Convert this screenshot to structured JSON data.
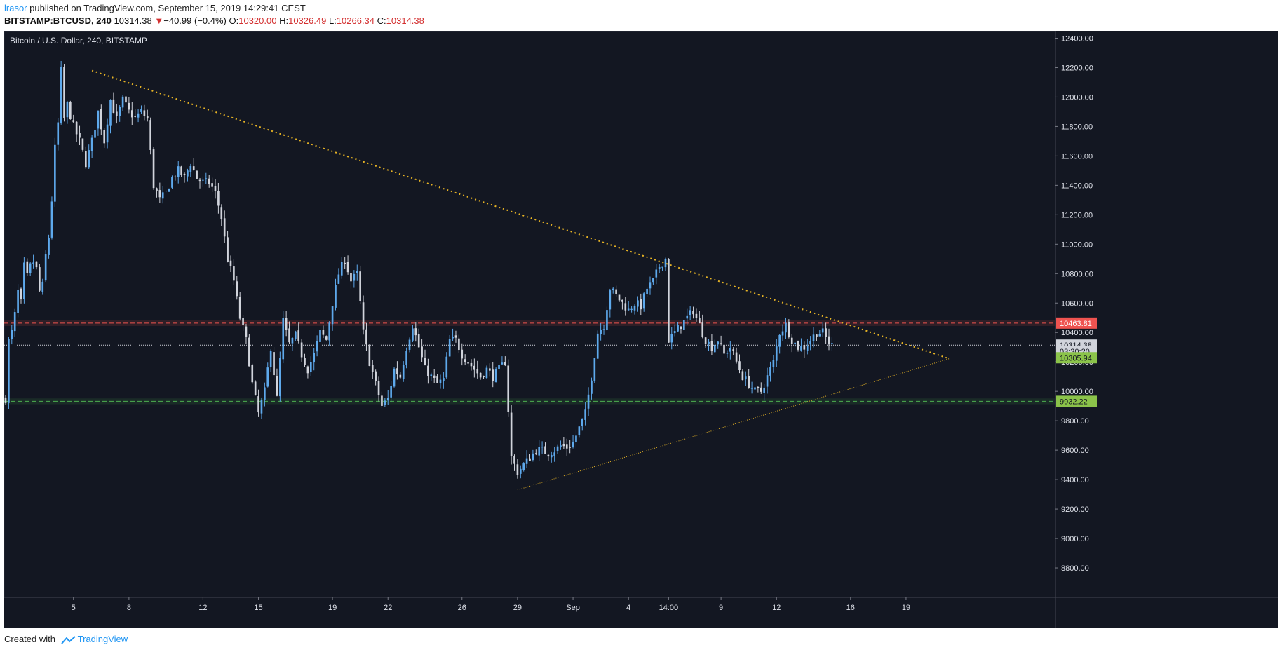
{
  "header": {
    "user": "lrasor",
    "published_text": "published on TradingView.com, September 15, 2019 14:29:41 CEST",
    "symbol": "BITSTAMP:BTCUSD, 240",
    "last": "10314.38",
    "change_arrow": "▼",
    "change": "−40.99 (−0.4%)",
    "o_label": "O:",
    "o_value": "10320.00",
    "h_label": "H:",
    "h_value": "10326.49",
    "l_label": "L:",
    "l_value": "10266.34",
    "c_label": "C:",
    "c_value": "10314.38"
  },
  "footer": {
    "created_with": "Created with",
    "brand": "TradingView"
  },
  "colors": {
    "background": "#131722",
    "up_candle": "#5ea9ec",
    "down_candle": "#d1d4dc",
    "resistance": "#ef5350",
    "support": "#4caf50",
    "trendline": "#e6b325",
    "axis_text": "#e0e3eb"
  },
  "chart_data": {
    "type": "candlestick",
    "title": "Bitcoin / U.S. Dollar, 240, BITSTAMP",
    "ylim": [
      8600,
      12450
    ],
    "grid": false,
    "y_ticks": [
      "8800.00",
      "9000.00",
      "9200.00",
      "9400.00",
      "9600.00",
      "9800.00",
      "10000.00",
      "10200.00",
      "10400.00",
      "10600.00",
      "10800.00",
      "11000.00",
      "11200.00",
      "11400.00",
      "11600.00",
      "11800.00",
      "12000.00",
      "12200.00",
      "12400.00"
    ],
    "x_ticks": [
      {
        "label": "5",
        "t": 22
      },
      {
        "label": "8",
        "t": 40
      },
      {
        "label": "12",
        "t": 64
      },
      {
        "label": "15",
        "t": 82
      },
      {
        "label": "19",
        "t": 106
      },
      {
        "label": "22",
        "t": 124
      },
      {
        "label": "26",
        "t": 148
      },
      {
        "label": "29",
        "t": 166
      },
      {
        "label": "Sep",
        "t": 184
      },
      {
        "label": "4",
        "t": 202
      },
      {
        "label": "14:00",
        "t": 215
      },
      {
        "label": "9",
        "t": 232
      },
      {
        "label": "12",
        "t": 250
      },
      {
        "label": "16",
        "t": 274
      },
      {
        "label": "19",
        "t": 292
      }
    ],
    "series": [
      {
        "name": "BTCUSD",
        "anchors": [
          [
            0,
            9950
          ],
          [
            1,
            10340
          ],
          [
            2,
            10400
          ],
          [
            3,
            10520
          ],
          [
            4,
            10680
          ],
          [
            5,
            10600
          ],
          [
            6,
            10850
          ],
          [
            7,
            10780
          ],
          [
            8,
            10850
          ],
          [
            9,
            10880
          ],
          [
            10,
            10830
          ],
          [
            11,
            10680
          ],
          [
            12,
            10720
          ],
          [
            13,
            10920
          ],
          [
            14,
            11050
          ],
          [
            15,
            11300
          ],
          [
            16,
            11650
          ],
          [
            17,
            11820
          ],
          [
            18,
            12180
          ],
          [
            19,
            11850
          ],
          [
            20,
            11950
          ],
          [
            22,
            11800
          ],
          [
            24,
            11700
          ],
          [
            26,
            11550
          ],
          [
            28,
            11700
          ],
          [
            30,
            11900
          ],
          [
            32,
            11700
          ],
          [
            34,
            11980
          ],
          [
            36,
            11850
          ],
          [
            38,
            11980
          ],
          [
            40,
            11900
          ],
          [
            42,
            11860
          ],
          [
            44,
            11900
          ],
          [
            46,
            11850
          ],
          [
            48,
            11400
          ],
          [
            50,
            11300
          ],
          [
            52,
            11350
          ],
          [
            54,
            11450
          ],
          [
            56,
            11500
          ],
          [
            58,
            11450
          ],
          [
            60,
            11550
          ],
          [
            62,
            11450
          ],
          [
            64,
            11420
          ],
          [
            66,
            11420
          ],
          [
            68,
            11350
          ],
          [
            70,
            11180
          ],
          [
            72,
            10900
          ],
          [
            74,
            10750
          ],
          [
            76,
            10500
          ],
          [
            78,
            10350
          ],
          [
            80,
            10050
          ],
          [
            82,
            9850
          ],
          [
            84,
            10000
          ],
          [
            86,
            10300
          ],
          [
            88,
            9950
          ],
          [
            90,
            10480
          ],
          [
            92,
            10320
          ],
          [
            94,
            10380
          ],
          [
            96,
            10250
          ],
          [
            98,
            10150
          ],
          [
            100,
            10250
          ],
          [
            102,
            10400
          ],
          [
            104,
            10350
          ],
          [
            106,
            10600
          ],
          [
            108,
            10800
          ],
          [
            110,
            10900
          ],
          [
            112,
            10750
          ],
          [
            114,
            10800
          ],
          [
            116,
            10400
          ],
          [
            118,
            10200
          ],
          [
            120,
            10050
          ],
          [
            122,
            9900
          ],
          [
            124,
            9950
          ],
          [
            126,
            10150
          ],
          [
            128,
            10100
          ],
          [
            130,
            10300
          ],
          [
            132,
            10450
          ],
          [
            134,
            10300
          ],
          [
            136,
            10150
          ],
          [
            138,
            10100
          ],
          [
            140,
            10050
          ],
          [
            142,
            10080
          ],
          [
            144,
            10350
          ],
          [
            146,
            10350
          ],
          [
            148,
            10250
          ],
          [
            150,
            10200
          ],
          [
            152,
            10150
          ],
          [
            154,
            10100
          ],
          [
            156,
            10150
          ],
          [
            158,
            10100
          ],
          [
            160,
            10150
          ],
          [
            162,
            10200
          ],
          [
            164,
            9550
          ],
          [
            166,
            9450
          ],
          [
            168,
            9500
          ],
          [
            170,
            9550
          ],
          [
            172,
            9600
          ],
          [
            174,
            9600
          ],
          [
            176,
            9580
          ],
          [
            178,
            9600
          ],
          [
            180,
            9630
          ],
          [
            182,
            9620
          ],
          [
            184,
            9650
          ],
          [
            186,
            9750
          ],
          [
            188,
            9850
          ],
          [
            190,
            10100
          ],
          [
            192,
            10400
          ],
          [
            194,
            10450
          ],
          [
            196,
            10700
          ],
          [
            198,
            10650
          ],
          [
            200,
            10600
          ],
          [
            202,
            10550
          ],
          [
            204,
            10600
          ],
          [
            206,
            10580
          ],
          [
            208,
            10700
          ],
          [
            210,
            10750
          ],
          [
            212,
            10850
          ],
          [
            214,
            10900
          ],
          [
            215,
            10350
          ],
          [
            217,
            10400
          ],
          [
            219,
            10450
          ],
          [
            221,
            10500
          ],
          [
            223,
            10550
          ],
          [
            225,
            10450
          ],
          [
            227,
            10350
          ],
          [
            229,
            10300
          ],
          [
            231,
            10350
          ],
          [
            233,
            10250
          ],
          [
            235,
            10300
          ],
          [
            237,
            10200
          ],
          [
            239,
            10100
          ],
          [
            241,
            10050
          ],
          [
            243,
            10000
          ],
          [
            245,
            10000
          ],
          [
            247,
            10100
          ],
          [
            249,
            10200
          ],
          [
            251,
            10400
          ],
          [
            253,
            10450
          ],
          [
            255,
            10350
          ],
          [
            257,
            10300
          ],
          [
            259,
            10300
          ],
          [
            261,
            10350
          ],
          [
            263,
            10400
          ],
          [
            265,
            10400
          ],
          [
            267,
            10330
          ],
          [
            268,
            10314
          ]
        ]
      }
    ],
    "trendlines": [
      {
        "name": "descending-resistance",
        "from": [
          28,
          12180
        ],
        "to": [
          306,
          10222
        ]
      },
      {
        "name": "ascending-support",
        "from": [
          166,
          9330
        ],
        "to": [
          306,
          10222
        ]
      }
    ],
    "levels": [
      {
        "name": "resistance",
        "value": 10463.81,
        "label": "10463.81"
      },
      {
        "name": "last-price",
        "value": 10314.38,
        "label": "10314.38"
      },
      {
        "name": "support",
        "value": 9932.22,
        "label": "9932.22"
      }
    ],
    "price_badges": {
      "countdown": "03:30:20",
      "close_badge": "10305.94"
    }
  }
}
